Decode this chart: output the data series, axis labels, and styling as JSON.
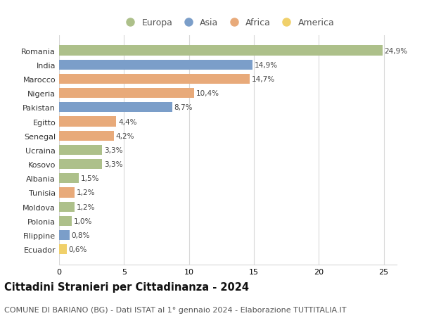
{
  "countries": [
    "Romania",
    "India",
    "Marocco",
    "Nigeria",
    "Pakistan",
    "Egitto",
    "Senegal",
    "Ucraina",
    "Kosovo",
    "Albania",
    "Tunisia",
    "Moldova",
    "Polonia",
    "Filippine",
    "Ecuador"
  ],
  "values": [
    24.9,
    14.9,
    14.7,
    10.4,
    8.7,
    4.4,
    4.2,
    3.3,
    3.3,
    1.5,
    1.2,
    1.2,
    1.0,
    0.8,
    0.6
  ],
  "labels": [
    "24,9%",
    "14,9%",
    "14,7%",
    "10,4%",
    "8,7%",
    "4,4%",
    "4,2%",
    "3,3%",
    "3,3%",
    "1,5%",
    "1,2%",
    "1,2%",
    "1,0%",
    "0,8%",
    "0,6%"
  ],
  "continents": [
    "Europa",
    "Asia",
    "Africa",
    "Africa",
    "Asia",
    "Africa",
    "Africa",
    "Europa",
    "Europa",
    "Europa",
    "Africa",
    "Europa",
    "Europa",
    "Asia",
    "America"
  ],
  "colors": {
    "Europa": "#adc08a",
    "Asia": "#7b9ec9",
    "Africa": "#e8aa7a",
    "America": "#f0d06a"
  },
  "legend_order": [
    "Europa",
    "Asia",
    "Africa",
    "America"
  ],
  "xlim": [
    0,
    26
  ],
  "xticks": [
    0,
    5,
    10,
    15,
    20,
    25
  ],
  "title": "Cittadini Stranieri per Cittadinanza - 2024",
  "subtitle": "COMUNE DI BARIANO (BG) - Dati ISTAT al 1° gennaio 2024 - Elaborazione TUTTITALIA.IT",
  "background_color": "#ffffff",
  "grid_color": "#d8d8d8",
  "bar_height": 0.7,
  "title_fontsize": 10.5,
  "subtitle_fontsize": 8,
  "label_fontsize": 7.5,
  "tick_fontsize": 8,
  "legend_fontsize": 9
}
